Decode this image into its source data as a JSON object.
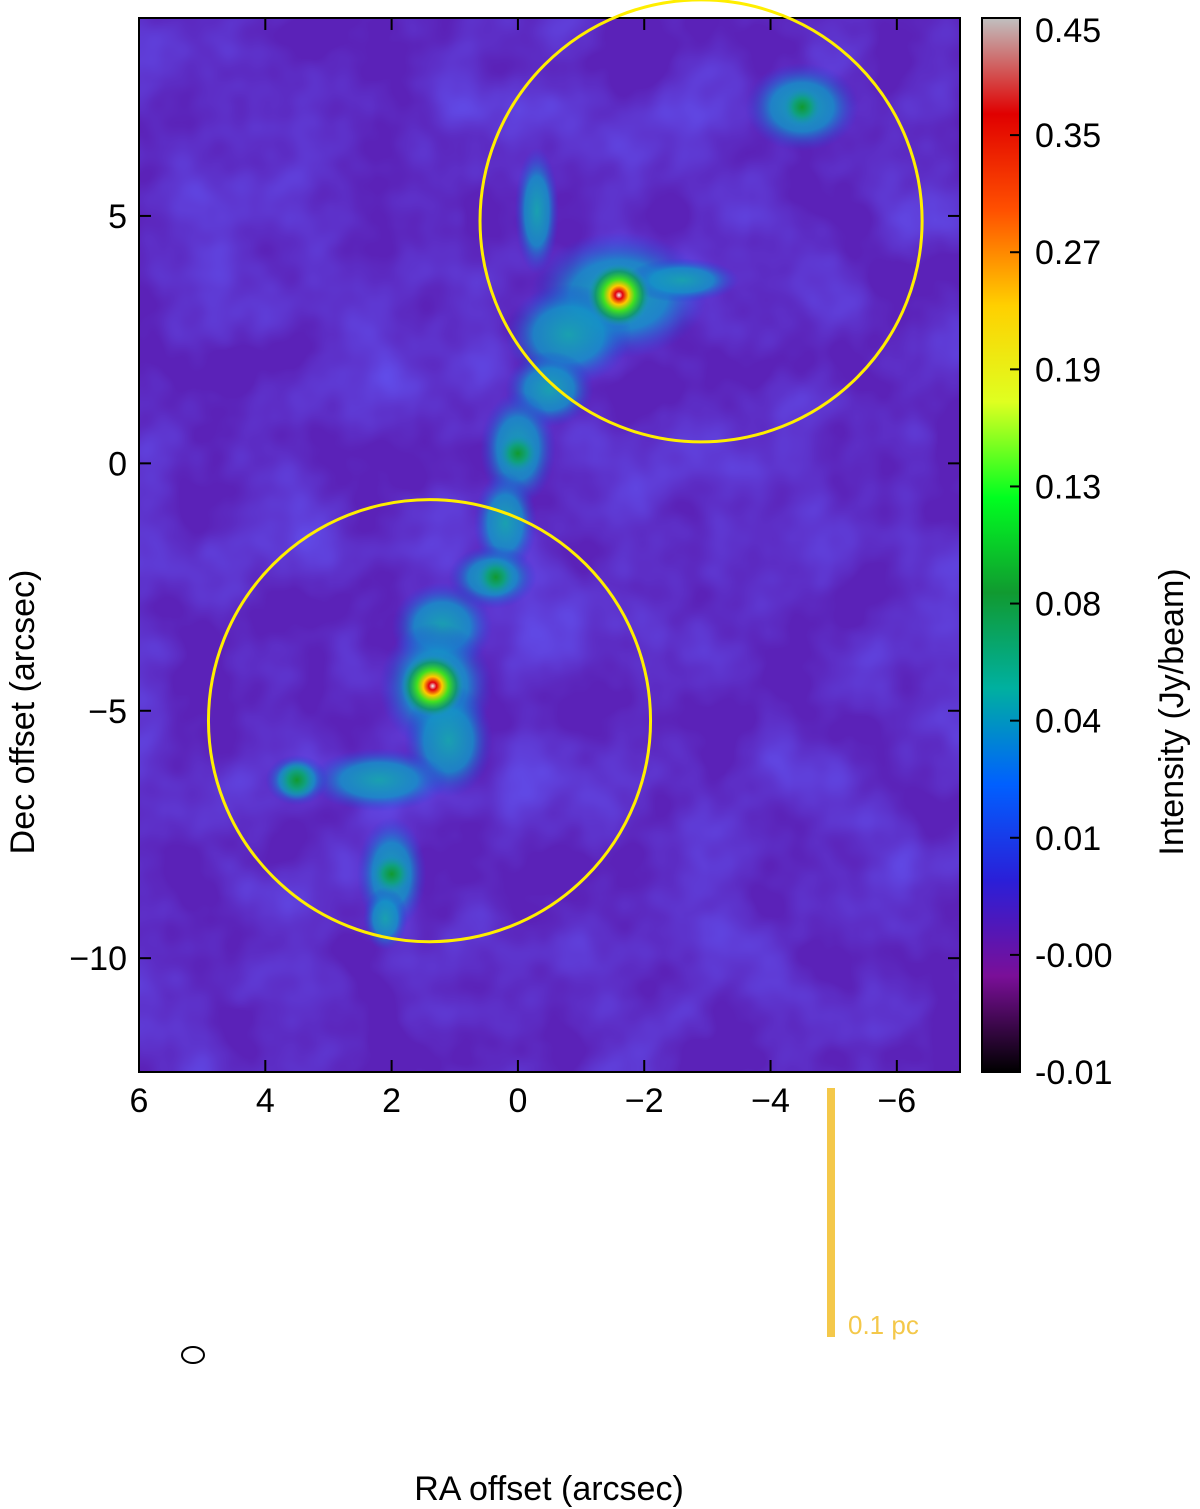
{
  "chart_data": {
    "type": "heatmap",
    "title": "",
    "xlabel": "RA offset (arcsec)",
    "ylabel": "Dec offset (arcsec)",
    "colorbar_label": "Intensity (Jy/beam)",
    "xlim": [
      6,
      -7
    ],
    "ylim": [
      -12.3,
      9.0
    ],
    "x_ticks": [
      {
        "value": 6,
        "label": "6"
      },
      {
        "value": 4,
        "label": "4"
      },
      {
        "value": 2,
        "label": "2"
      },
      {
        "value": 0,
        "label": "0"
      },
      {
        "value": -2,
        "label": "−2"
      },
      {
        "value": -4,
        "label": "−4"
      },
      {
        "value": -6,
        "label": "−6"
      }
    ],
    "y_ticks": [
      {
        "value": 5,
        "label": "5"
      },
      {
        "value": 0,
        "label": "0"
      },
      {
        "value": -5,
        "label": "−5"
      },
      {
        "value": -10,
        "label": "−10"
      }
    ],
    "colorbar_ticks": [
      "0.45",
      "0.35",
      "0.27",
      "0.19",
      "0.13",
      "0.08",
      "0.04",
      "0.01",
      "-0.00",
      "-0.01"
    ],
    "colorbar_range": [
      -0.01,
      0.45
    ],
    "colorbar_stops": [
      "#000000",
      "#7a0f98",
      "#2a1fd8",
      "#0060ff",
      "#00b0a0",
      "#109a30",
      "#00ff20",
      "#dfff20",
      "#ffd000",
      "#ff5000",
      "#e00000",
      "#c0c0c0"
    ],
    "background_color": "#5b22b8",
    "sources": [
      {
        "name": "north-core",
        "x": -1.6,
        "y": 3.4,
        "peak": 0.4
      },
      {
        "name": "south-core",
        "x": 1.35,
        "y": -4.5,
        "peak": 0.4
      },
      {
        "name": "middle-clump",
        "x": 0.0,
        "y": 0.2,
        "peak": 0.09
      },
      {
        "name": "clump-upper-south",
        "x": 0.35,
        "y": -2.3,
        "peak": 0.1
      },
      {
        "name": "clump-southwest",
        "x": 3.5,
        "y": -6.4,
        "peak": 0.06
      },
      {
        "name": "clump-bottom",
        "x": 2.0,
        "y": -8.3,
        "peak": 0.06
      },
      {
        "name": "clump-northeast",
        "x": -4.5,
        "y": 7.2,
        "peak": 0.03
      }
    ],
    "circles": [
      {
        "name": "north-circle",
        "x": -2.9,
        "y": 4.9,
        "radius_arcsec": 3.5,
        "color": "#ffee00"
      },
      {
        "name": "south-circle",
        "x": 1.4,
        "y": -5.2,
        "radius_arcsec": 3.5,
        "color": "#ffee00"
      }
    ],
    "scale_bar": {
      "label": "0.1 pc",
      "color": "#f4c84a"
    },
    "beam": {
      "color": "#ffffff"
    }
  }
}
